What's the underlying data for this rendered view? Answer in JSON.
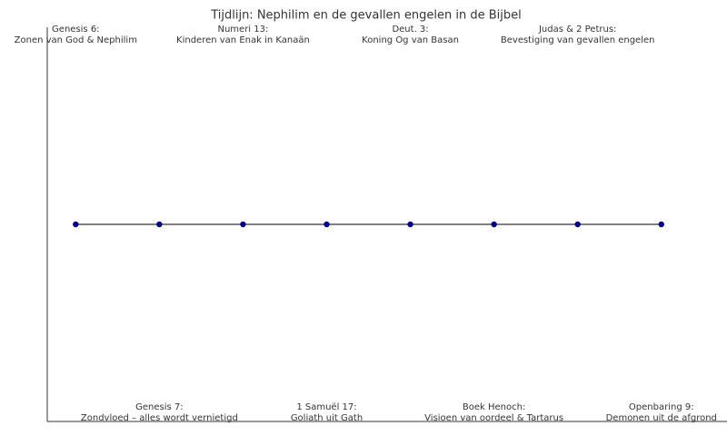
{
  "chart_data": {
    "type": "timeline",
    "title": "Tijdlijn: Nephilim en de gevallen engelen in de Bijbel",
    "x": [
      0,
      1,
      2,
      3,
      4,
      5,
      6,
      7
    ],
    "values": [
      0,
      0,
      0,
      0,
      0,
      0,
      0,
      0
    ],
    "xlim": [
      -0.34,
      7.6
    ],
    "ylim": [
      -1,
      1
    ],
    "color": "#00008b",
    "line_color": "#808080",
    "events": [
      {
        "lines": [
          "Genesis 6:",
          "Zonen van God & Nephilim"
        ]
      },
      {
        "lines": [
          "Genesis 7:",
          "Zondvloed – alles wordt vernietigd"
        ]
      },
      {
        "lines": [
          "Numeri 13:",
          "Kinderen van Enak in Kanaän"
        ]
      },
      {
        "lines": [
          "1 Samuël 17:",
          "Goliath uit Gath"
        ]
      },
      {
        "lines": [
          "Deut. 3:",
          "Koning Og van Basan"
        ]
      },
      {
        "lines": [
          "Boek Henoch:",
          "Visioen van oordeel & Tartarus"
        ]
      },
      {
        "lines": [
          "Judas & 2 Petrus:",
          "Bevestiging van gevallen engelen"
        ]
      },
      {
        "lines": [
          "Openbaring 9:",
          "Demonen uit de afgrond"
        ]
      }
    ]
  }
}
